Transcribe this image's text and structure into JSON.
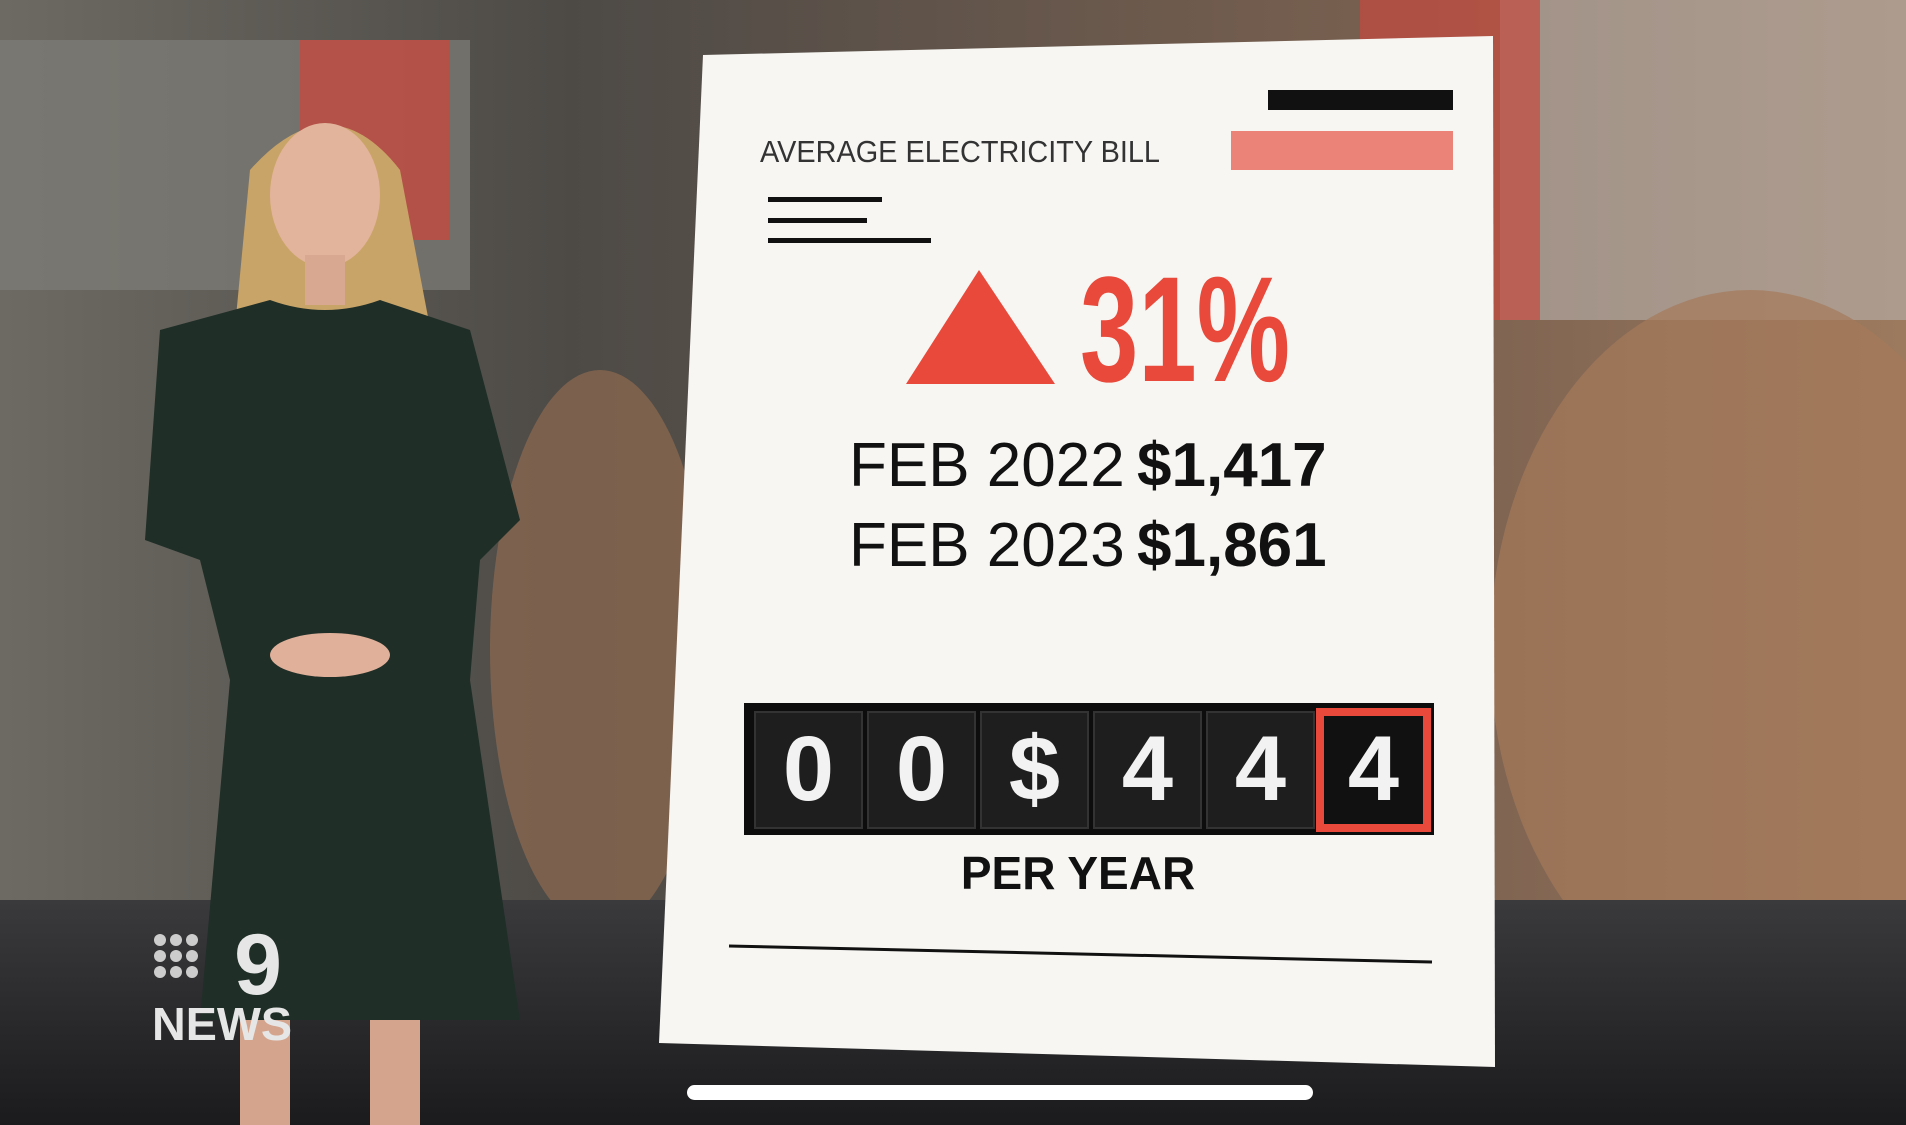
{
  "graphic": {
    "title": "AVERAGE ELECTRICITY BILL",
    "change": "31%",
    "rows": [
      {
        "label": "FEB 2022",
        "amount": "$1,417"
      },
      {
        "label": "FEB 2023",
        "amount": "$1,861"
      }
    ],
    "counter": [
      "0",
      "0",
      "$",
      "4",
      "4",
      "4"
    ],
    "caption": "PER YEAR"
  },
  "logo": {
    "mark": "9",
    "text": "NEWS"
  }
}
